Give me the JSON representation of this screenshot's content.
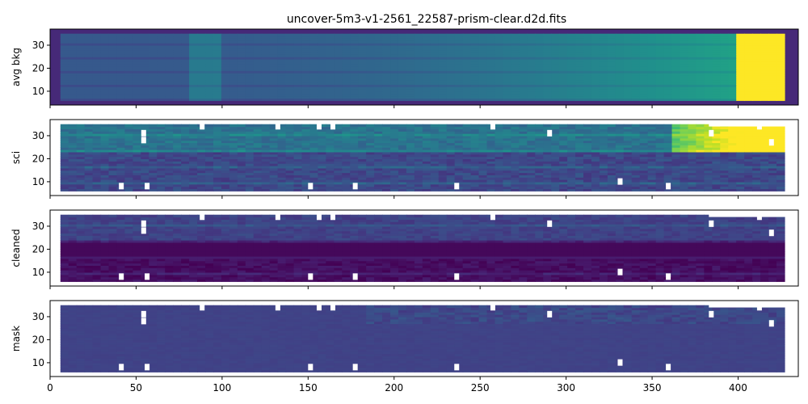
{
  "title": "uncover-5m3-v1-2561_22587-prism-clear.d2d.fits",
  "colors": {
    "viridis_low": "#440154",
    "viridis_mid": "#21918c",
    "viridis_high": "#fde725",
    "mask_fill": "#3b4f8b",
    "frame": "#000000"
  },
  "chart_data": [
    {
      "type": "heatmap",
      "ylabel": "avg bkg",
      "xlim": [
        0,
        435
      ],
      "ylim": [
        4,
        37
      ],
      "yticks": [
        10,
        20,
        30
      ],
      "xticks": [
        0,
        50,
        100,
        150,
        200,
        250,
        300,
        350,
        400
      ],
      "colormap": "viridis",
      "trend": "background rises steadily toward high x, saturating (yellow) beyond ~400"
    },
    {
      "type": "heatmap",
      "ylabel": "sci",
      "xlim": [
        0,
        435
      ],
      "ylim": [
        4,
        37
      ],
      "yticks": [
        10,
        20,
        30
      ],
      "xticks": [
        0,
        50,
        100,
        150,
        200,
        250,
        300,
        350,
        400
      ],
      "colormap": "viridis"
    },
    {
      "type": "heatmap",
      "ylabel": "cleaned",
      "xlim": [
        0,
        435
      ],
      "ylim": [
        4,
        37
      ],
      "yticks": [
        10,
        20,
        30
      ],
      "xticks": [
        0,
        50,
        100,
        150,
        200,
        250,
        300,
        350,
        400
      ],
      "colormap": "viridis"
    },
    {
      "type": "heatmap",
      "ylabel": "mask",
      "xlim": [
        0,
        435
      ],
      "ylim": [
        4,
        37
      ],
      "yticks": [
        10,
        20,
        30
      ],
      "xticks": [
        0,
        50,
        100,
        150,
        200,
        250,
        300,
        350,
        400
      ],
      "xtick_labels": [
        "0",
        "50",
        "100",
        "150",
        "200",
        "250",
        "300",
        "350",
        "400"
      ],
      "colormap": "viridis"
    }
  ]
}
